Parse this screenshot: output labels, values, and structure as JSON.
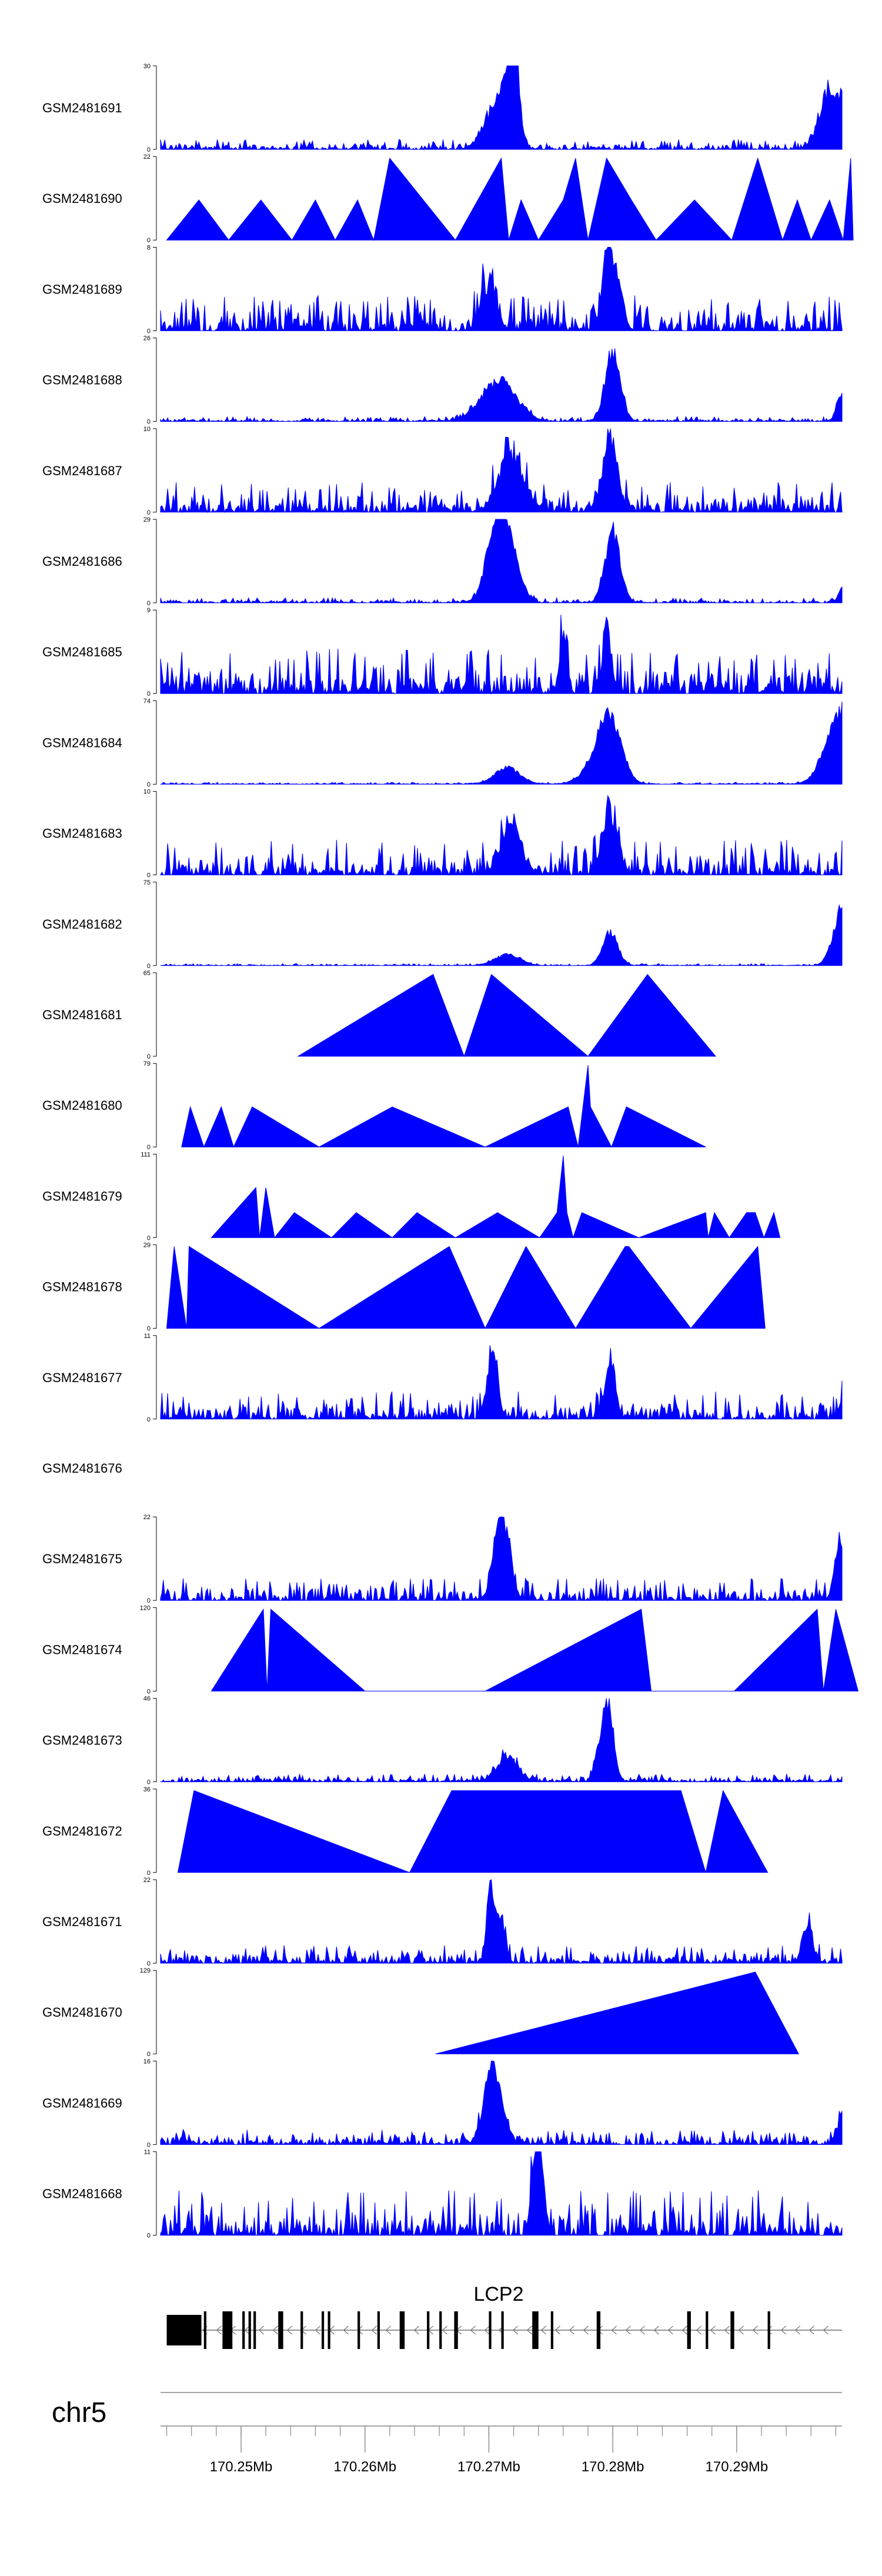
{
  "chart_data": {
    "type": "area",
    "chromosome": "chr5",
    "gene": "LCP2",
    "x_range_mb": [
      170.2435,
      170.2985
    ],
    "axis_ticks_mb": [
      170.25,
      170.26,
      170.27,
      170.28,
      170.29
    ],
    "axis_tick_labels": [
      "170.25Mb",
      "170.26Mb",
      "170.27Mb",
      "170.28Mb",
      "170.29Mb"
    ],
    "fill_color": "#0000ff",
    "gene_color": "#000000",
    "tracks": [
      {
        "name": "GSM2481691",
        "ymax": 30,
        "ymax_label": "30",
        "ymin_label": "0",
        "shape": "dense",
        "noise": 0.1,
        "peaks": [
          [
            170.2715,
            0.75,
            0.0006
          ],
          [
            170.2721,
            0.95,
            0.0004
          ],
          [
            170.2702,
            0.45,
            0.0008
          ],
          [
            170.2975,
            0.8,
            0.0008
          ],
          [
            170.299,
            0.95,
            0.0004
          ]
        ]
      },
      {
        "name": "GSM2481690",
        "ymax": 22,
        "ymax_label": "22",
        "ymin_label": "0",
        "shape": "tri",
        "points": [
          [
            170.244,
            0
          ],
          [
            170.2466,
            0.48
          ],
          [
            170.249,
            0
          ],
          [
            170.2516,
            0.48
          ],
          [
            170.2541,
            0
          ],
          [
            170.256,
            0.48
          ],
          [
            170.2576,
            0
          ],
          [
            170.2594,
            0.48
          ],
          [
            170.2607,
            0
          ],
          [
            170.262,
            0.98
          ],
          [
            170.2673,
            0
          ],
          [
            170.271,
            0.98
          ],
          [
            170.2716,
            0
          ],
          [
            170.2726,
            0.48
          ],
          [
            170.274,
            0
          ],
          [
            170.276,
            0.48
          ],
          [
            170.277,
            0.98
          ],
          [
            170.278,
            0
          ],
          [
            170.2795,
            0.98
          ],
          [
            170.2815,
            0.48
          ],
          [
            170.2835,
            0
          ],
          [
            170.2866,
            0.48
          ],
          [
            170.2896,
            0
          ],
          [
            170.2917,
            0.98
          ],
          [
            170.2937,
            0
          ],
          [
            170.2949,
            0.48
          ],
          [
            170.296,
            0
          ],
          [
            170.2975,
            0.48
          ],
          [
            170.2986,
            0
          ],
          [
            170.2992,
            0.98
          ],
          [
            170.2994,
            0
          ]
        ]
      },
      {
        "name": "GSM2481689",
        "ymax": 8,
        "ymax_label": "8",
        "ymin_label": "0",
        "shape": "dense",
        "noise": 0.35,
        "peaks": [
          [
            170.2795,
            0.95,
            0.0004
          ],
          [
            170.2803,
            0.6,
            0.0005
          ],
          [
            170.27,
            0.6,
            0.0006
          ]
        ]
      },
      {
        "name": "GSM2481688",
        "ymax": 26,
        "ymax_label": "26",
        "ymin_label": "0",
        "shape": "dense",
        "noise": 0.05,
        "peaks": [
          [
            170.2708,
            0.55,
            0.0014
          ],
          [
            170.28,
            0.95,
            0.0006
          ],
          [
            170.2985,
            0.35,
            0.0004
          ]
        ]
      },
      {
        "name": "GSM2481687",
        "ymax": 10,
        "ymax_label": "10",
        "ymin_label": "0",
        "shape": "dense",
        "noise": 0.3,
        "peaks": [
          [
            170.2718,
            0.75,
            0.001
          ],
          [
            170.2798,
            0.95,
            0.0006
          ]
        ]
      },
      {
        "name": "GSM2481686",
        "ymax": 29,
        "ymax_label": "29",
        "ymin_label": "0",
        "shape": "dense",
        "noise": 0.05,
        "peaks": [
          [
            170.2706,
            0.95,
            0.0008
          ],
          [
            170.2717,
            0.65,
            0.0008
          ],
          [
            170.28,
            0.95,
            0.0006
          ],
          [
            170.2988,
            0.3,
            0.0004
          ]
        ]
      },
      {
        "name": "GSM2481685",
        "ymax": 9,
        "ymax_label": "9",
        "ymin_label": "0",
        "shape": "dense",
        "noise": 0.45,
        "peaks": [
          [
            170.2795,
            0.95,
            0.0003
          ],
          [
            170.276,
            0.8,
            0.0003
          ]
        ]
      },
      {
        "name": "GSM2481684",
        "ymax": 74,
        "ymax_label": "74",
        "ymin_label": "0",
        "shape": "dense",
        "noise": 0.02,
        "peaks": [
          [
            170.2715,
            0.22,
            0.001
          ],
          [
            170.2798,
            0.7,
            0.0009
          ],
          [
            170.279,
            0.3,
            0.0012
          ],
          [
            170.2985,
            1.0,
            0.0012
          ]
        ]
      },
      {
        "name": "GSM2481683",
        "ymax": 10,
        "ymax_label": "10",
        "ymin_label": "0",
        "shape": "dense",
        "noise": 0.35,
        "peaks": [
          [
            170.2718,
            0.65,
            0.0008
          ],
          [
            170.2798,
            0.8,
            0.0006
          ]
        ]
      },
      {
        "name": "GSM2481682",
        "ymax": 75,
        "ymax_label": "75",
        "ymin_label": "0",
        "shape": "dense",
        "noise": 0.02,
        "peaks": [
          [
            170.2715,
            0.15,
            0.001
          ],
          [
            170.2798,
            0.45,
            0.0006
          ],
          [
            170.2988,
            0.95,
            0.0008
          ]
        ]
      },
      {
        "name": "GSM2481681",
        "ymax": 65,
        "ymax_label": "65",
        "ymin_label": "0",
        "shape": "tri",
        "points": [
          [
            170.2546,
            0
          ],
          [
            170.2655,
            0.98
          ],
          [
            170.268,
            0
          ],
          [
            170.2702,
            0.98
          ],
          [
            170.278,
            0
          ],
          [
            170.2828,
            0.98
          ],
          [
            170.2883,
            0
          ]
        ]
      },
      {
        "name": "GSM2481680",
        "ymax": 79,
        "ymax_label": "79",
        "ymin_label": "0",
        "shape": "tri",
        "points": [
          [
            170.2452,
            0
          ],
          [
            170.2459,
            0.48
          ],
          [
            170.247,
            0
          ],
          [
            170.2484,
            0.48
          ],
          [
            170.2494,
            0
          ],
          [
            170.2509,
            0.48
          ],
          [
            170.2563,
            0
          ],
          [
            170.2622,
            0.48
          ],
          [
            170.2697,
            0
          ],
          [
            170.2764,
            0.48
          ],
          [
            170.2772,
            0
          ],
          [
            170.278,
            0.98
          ],
          [
            170.2782,
            0.48
          ],
          [
            170.2799,
            0
          ],
          [
            170.2811,
            0.48
          ],
          [
            170.2875,
            0
          ]
        ]
      },
      {
        "name": "GSM2481679",
        "ymax": 111,
        "ymax_label": "111",
        "ymin_label": "0",
        "shape": "tri",
        "points": [
          [
            170.2476,
            0
          ],
          [
            170.2512,
            0.6
          ],
          [
            170.2515,
            0
          ],
          [
            170.252,
            0.6
          ],
          [
            170.2527,
            0
          ],
          [
            170.2543,
            0.3
          ],
          [
            170.2573,
            0
          ],
          [
            170.2593,
            0.3
          ],
          [
            170.2622,
            0
          ],
          [
            170.2642,
            0.3
          ],
          [
            170.2673,
            0
          ],
          [
            170.2707,
            0.3
          ],
          [
            170.2741,
            0
          ],
          [
            170.2755,
            0.3
          ],
          [
            170.276,
            0.98
          ],
          [
            170.2763,
            0.3
          ],
          [
            170.2768,
            0
          ],
          [
            170.2775,
            0.3
          ],
          [
            170.2821,
            0
          ],
          [
            170.2875,
            0.3
          ],
          [
            170.2877,
            0
          ],
          [
            170.2882,
            0.3
          ],
          [
            170.2894,
            0
          ],
          [
            170.2908,
            0.3
          ],
          [
            170.2915,
            0.3
          ],
          [
            170.2922,
            0
          ],
          [
            170.293,
            0.3
          ],
          [
            170.2935,
            0
          ]
        ]
      },
      {
        "name": "GSM2481678",
        "ymax": 29,
        "ymax_label": "29",
        "ymin_label": "0",
        "shape": "tri",
        "points": [
          [
            170.244,
            0
          ],
          [
            170.2446,
            0.98
          ],
          [
            170.2456,
            0
          ],
          [
            170.2458,
            0.98
          ],
          [
            170.2563,
            0
          ],
          [
            170.2668,
            0.98
          ],
          [
            170.2697,
            0
          ],
          [
            170.273,
            0.98
          ],
          [
            170.277,
            0
          ],
          [
            170.281,
            0.98
          ],
          [
            170.2813,
            0.98
          ],
          [
            170.2863,
            0
          ],
          [
            170.2917,
            0.98
          ],
          [
            170.2923,
            0
          ]
        ]
      },
      {
        "name": "GSM2481677",
        "ymax": 11,
        "ymax_label": "11",
        "ymin_label": "0",
        "shape": "dense",
        "noise": 0.28,
        "peaks": [
          [
            170.2703,
            0.95,
            0.0004
          ],
          [
            170.2798,
            0.75,
            0.0004
          ],
          [
            170.299,
            0.65,
            0.0004
          ]
        ]
      },
      {
        "name": "GSM2481676",
        "shape": "empty"
      },
      {
        "name": "GSM2481675",
        "ymax": 22,
        "ymax_label": "22",
        "ymin_label": "0",
        "shape": "dense",
        "noise": 0.22,
        "peaks": [
          [
            170.2713,
            0.95,
            0.0005
          ],
          [
            170.2705,
            0.6,
            0.0004
          ],
          [
            170.2983,
            0.8,
            0.0004
          ]
        ]
      },
      {
        "name": "GSM2481674",
        "ymax": 120,
        "ymax_label": "120",
        "ymin_label": "0",
        "shape": "tri",
        "points": [
          [
            170.2476,
            0
          ],
          [
            170.2518,
            0.98
          ],
          [
            170.2521,
            0
          ],
          [
            170.2524,
            0.98
          ],
          [
            170.26,
            0
          ],
          [
            170.2697,
            0
          ],
          [
            170.2823,
            0.98
          ],
          [
            170.2831,
            0
          ],
          [
            170.2898,
            0
          ],
          [
            170.2965,
            0.98
          ],
          [
            170.297,
            0
          ],
          [
            170.298,
            0.98
          ],
          [
            170.2998,
            0
          ]
        ]
      },
      {
        "name": "GSM2481673",
        "ymax": 46,
        "ymax_label": "46",
        "ymin_label": "0",
        "shape": "dense",
        "noise": 0.08,
        "peaks": [
          [
            170.2715,
            0.35,
            0.0008
          ],
          [
            170.2797,
            0.95,
            0.0004
          ],
          [
            170.279,
            0.45,
            0.0004
          ]
        ]
      },
      {
        "name": "GSM2481672",
        "ymax": 36,
        "ymax_label": "36",
        "ymin_label": "0",
        "shape": "tri",
        "points": [
          [
            170.2449,
            0
          ],
          [
            170.2462,
            0.98
          ],
          [
            170.2636,
            0
          ],
          [
            170.267,
            0.98
          ],
          [
            170.2855,
            0.98
          ],
          [
            170.2875,
            0
          ],
          [
            170.2889,
            0.98
          ],
          [
            170.2925,
            0
          ]
        ]
      },
      {
        "name": "GSM2481671",
        "ymax": 22,
        "ymax_label": "22",
        "ymin_label": "0",
        "shape": "dense",
        "noise": 0.18,
        "peaks": [
          [
            170.2701,
            0.95,
            0.0003
          ],
          [
            170.2709,
            0.55,
            0.0004
          ],
          [
            170.2957,
            0.5,
            0.0004
          ]
        ]
      },
      {
        "name": "GSM2481670",
        "ymax": 129,
        "ymax_label": "129",
        "ymin_label": "0",
        "shape": "tri",
        "points": [
          [
            170.2657,
            0
          ],
          [
            170.2915,
            0.98
          ],
          [
            170.295,
            0
          ]
        ]
      },
      {
        "name": "GSM2481669",
        "ymax": 16,
        "ymax_label": "16",
        "ymin_label": "0",
        "shape": "dense",
        "noise": 0.15,
        "peaks": [
          [
            170.2701,
            0.75,
            0.0006
          ],
          [
            170.2708,
            0.45,
            0.0006
          ],
          [
            170.2992,
            0.95,
            0.0006
          ]
        ]
      },
      {
        "name": "GSM2481668",
        "ymax": 11,
        "ymax_label": "11",
        "ymin_label": "0",
        "shape": "dense",
        "noise": 0.45,
        "peaks": [
          [
            170.2738,
            0.95,
            0.0003
          ],
          [
            170.2742,
            0.8,
            0.0003
          ]
        ]
      }
    ],
    "gene_model": {
      "strand": "-",
      "start_mb": 170.244,
      "end_mb": 170.2985,
      "exons_mb": [
        [
          170.244,
          170.2468
        ],
        [
          170.247,
          170.2472
        ],
        [
          170.2485,
          170.2493
        ],
        [
          170.2501,
          170.2503
        ],
        [
          170.2506,
          170.2508
        ],
        [
          170.251,
          170.2512
        ],
        [
          170.253,
          170.2534
        ],
        [
          170.2548,
          170.255
        ],
        [
          170.2565,
          170.2567
        ],
        [
          170.257,
          170.2572
        ],
        [
          170.2594,
          170.2596
        ],
        [
          170.261,
          170.2612
        ],
        [
          170.2628,
          170.2632
        ],
        [
          170.265,
          170.2652
        ],
        [
          170.266,
          170.2662
        ],
        [
          170.2672,
          170.2675
        ],
        [
          170.27,
          170.2702
        ],
        [
          170.271,
          170.2712
        ],
        [
          170.2735,
          170.274
        ],
        [
          170.275,
          170.2752
        ],
        [
          170.2787,
          170.279
        ],
        [
          170.286,
          170.2863
        ],
        [
          170.2875,
          170.2877
        ],
        [
          170.2895,
          170.2898
        ],
        [
          170.2925,
          170.2927
        ]
      ]
    }
  }
}
